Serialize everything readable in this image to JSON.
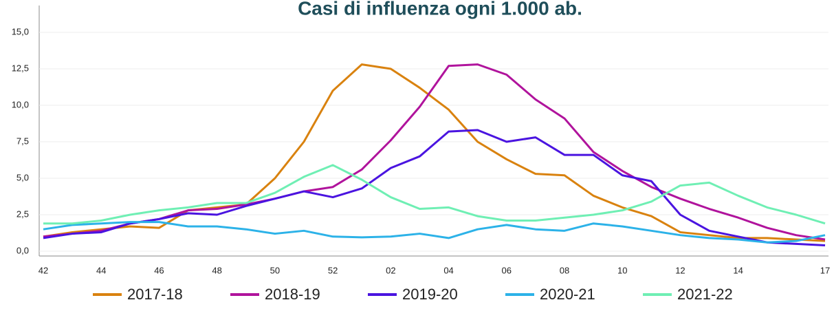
{
  "chart_data": {
    "type": "line",
    "title": "Casi di influenza ogni 1.000 ab.",
    "categories": [
      "42",
      null,
      "44",
      null,
      "46",
      null,
      "48",
      null,
      "50",
      null,
      "52",
      null,
      "02",
      null,
      "04",
      null,
      "06",
      null,
      "08",
      null,
      "10",
      null,
      "12",
      null,
      "14",
      null,
      null,
      "17"
    ],
    "ylim": [
      0,
      15
    ],
    "yticks": [
      {
        "value": 0,
        "label": "0,0"
      },
      {
        "value": 2.5,
        "label": "2,5"
      },
      {
        "value": 5,
        "label": "5,0"
      },
      {
        "value": 7.5,
        "label": "7,5"
      },
      {
        "value": 10,
        "label": "10,0"
      },
      {
        "value": 12.5,
        "label": "12,5"
      },
      {
        "value": 15,
        "label": "15,0"
      }
    ],
    "grid": true,
    "legend": "bottom",
    "series": [
      {
        "name": "2017-18",
        "color": "#d9820f",
        "values": [
          1.0,
          1.3,
          1.5,
          1.7,
          1.6,
          2.8,
          3.0,
          3.2,
          5.0,
          7.5,
          11.0,
          12.8,
          12.5,
          11.2,
          9.7,
          7.5,
          6.3,
          5.3,
          5.2,
          3.8,
          3.0,
          2.4,
          1.3,
          1.1,
          0.9,
          0.9,
          0.8,
          0.7
        ]
      },
      {
        "name": "2018-19",
        "color": "#b0139c",
        "values": [
          1.0,
          1.2,
          1.4,
          1.9,
          2.2,
          2.8,
          2.9,
          3.2,
          3.6,
          4.1,
          4.4,
          5.6,
          7.6,
          9.9,
          12.7,
          12.8,
          12.1,
          10.4,
          9.1,
          6.8,
          5.5,
          4.4,
          3.6,
          2.9,
          2.3,
          1.6,
          1.1,
          0.8
        ]
      },
      {
        "name": "2019-20",
        "color": "#4a14e0",
        "values": [
          0.9,
          1.2,
          1.3,
          1.9,
          2.2,
          2.6,
          2.5,
          3.1,
          3.6,
          4.1,
          3.7,
          4.3,
          5.7,
          6.5,
          8.2,
          8.3,
          7.5,
          7.8,
          6.6,
          6.6,
          5.2,
          4.8,
          2.5,
          1.4,
          1.0,
          0.6,
          0.5,
          0.4
        ]
      },
      {
        "name": "2020-21",
        "color": "#2cb2e8",
        "values": [
          1.5,
          1.8,
          1.9,
          2.0,
          2.0,
          1.7,
          1.7,
          1.5,
          1.2,
          1.4,
          1.0,
          0.95,
          1.0,
          1.2,
          0.9,
          1.5,
          1.8,
          1.5,
          1.4,
          1.9,
          1.7,
          1.4,
          1.1,
          0.9,
          0.8,
          0.6,
          0.7,
          1.1
        ]
      },
      {
        "name": "2021-22",
        "color": "#6fefb4",
        "values": [
          1.9,
          1.9,
          2.1,
          2.5,
          2.8,
          3.0,
          3.3,
          3.3,
          4.0,
          5.1,
          5.9,
          4.9,
          3.7,
          2.9,
          3.0,
          2.4,
          2.1,
          2.1,
          2.3,
          2.5,
          2.8,
          3.4,
          4.5,
          4.7,
          3.8,
          3.0,
          2.5,
          1.9
        ]
      }
    ]
  }
}
